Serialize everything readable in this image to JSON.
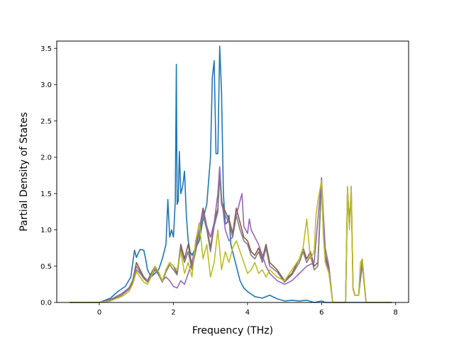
{
  "chart_data": {
    "type": "line",
    "title": "",
    "xlabel": "Frequency (THz)",
    "ylabel": "Partial Density of States",
    "xlim": [
      -1.15,
      8.35
    ],
    "ylim": [
      0,
      3.6
    ],
    "xticks": [
      0,
      2,
      4,
      6,
      8
    ],
    "yticks": [
      0.0,
      0.5,
      1.0,
      1.5,
      2.0,
      2.5,
      3.0,
      3.5
    ],
    "xtick_labels": [
      "0",
      "2",
      "4",
      "6",
      "8"
    ],
    "ytick_labels": [
      "0.0",
      "0.5",
      "1.0",
      "1.5",
      "2.0",
      "2.5",
      "3.0",
      "3.5"
    ],
    "grid": false,
    "legend": "none",
    "series": [
      {
        "color": "#1f77b4",
        "x": [
          -0.8,
          0.0,
          0.3,
          0.5,
          0.7,
          0.85,
          0.95,
          1.0,
          1.05,
          1.1,
          1.2,
          1.25,
          1.3,
          1.4,
          1.5,
          1.6,
          1.7,
          1.8,
          1.85,
          1.9,
          1.95,
          2.0,
          2.05,
          2.08,
          2.1,
          2.13,
          2.16,
          2.2,
          2.25,
          2.3,
          2.35,
          2.4,
          2.45,
          2.5,
          2.6,
          2.7,
          2.8,
          2.9,
          3.0,
          3.05,
          3.1,
          3.15,
          3.2,
          3.25,
          3.3,
          3.35,
          3.4,
          3.45,
          3.5,
          3.55,
          3.6,
          3.7,
          3.8,
          3.9,
          4.0,
          4.2,
          4.4,
          4.6,
          4.8,
          5.0,
          5.2,
          5.4,
          5.6,
          5.8,
          6.0,
          6.1,
          6.2,
          7.0,
          7.9
        ],
        "y": [
          0.0,
          0.0,
          0.06,
          0.15,
          0.22,
          0.35,
          0.72,
          0.62,
          0.68,
          0.73,
          0.72,
          0.6,
          0.45,
          0.35,
          0.4,
          0.45,
          0.6,
          0.8,
          1.42,
          0.9,
          1.0,
          0.9,
          1.4,
          3.28,
          1.35,
          1.4,
          2.08,
          1.5,
          1.6,
          1.81,
          1.2,
          0.85,
          0.7,
          0.65,
          0.75,
          0.85,
          1.15,
          1.35,
          2.0,
          3.1,
          3.33,
          2.05,
          2.05,
          3.53,
          2.9,
          1.5,
          1.08,
          1.1,
          1.2,
          0.8,
          0.7,
          0.5,
          0.3,
          0.2,
          0.15,
          0.08,
          0.06,
          0.1,
          0.05,
          0.02,
          0.03,
          0.02,
          0.03,
          0.0,
          0.02,
          0.0,
          0.0,
          0.0,
          0.0
        ]
      },
      {
        "color": "#8c564b",
        "x": [
          -0.8,
          0.0,
          0.3,
          0.6,
          0.8,
          0.9,
          1.0,
          1.1,
          1.2,
          1.3,
          1.4,
          1.5,
          1.6,
          1.7,
          1.8,
          1.9,
          2.0,
          2.1,
          2.2,
          2.3,
          2.4,
          2.5,
          2.6,
          2.7,
          2.8,
          2.9,
          3.0,
          3.1,
          3.2,
          3.25,
          3.3,
          3.4,
          3.5,
          3.6,
          3.7,
          3.8,
          3.9,
          4.0,
          4.1,
          4.2,
          4.3,
          4.4,
          4.5,
          4.6,
          4.8,
          5.0,
          5.2,
          5.4,
          5.5,
          5.6,
          5.7,
          5.8,
          5.9,
          6.0,
          6.05,
          6.1,
          6.2,
          6.3,
          6.6,
          6.65,
          6.7,
          6.75,
          6.8,
          6.85,
          6.9,
          7.0,
          7.1,
          7.2,
          7.9
        ],
        "y": [
          0.0,
          0.0,
          0.04,
          0.12,
          0.2,
          0.3,
          0.55,
          0.45,
          0.35,
          0.3,
          0.4,
          0.5,
          0.4,
          0.3,
          0.45,
          0.55,
          0.5,
          0.4,
          0.8,
          0.6,
          0.8,
          0.5,
          0.75,
          1.0,
          1.3,
          1.05,
          0.75,
          1.1,
          1.3,
          1.85,
          1.4,
          1.25,
          1.15,
          0.95,
          1.3,
          1.1,
          0.9,
          0.85,
          0.7,
          0.65,
          0.75,
          0.6,
          0.8,
          0.55,
          0.45,
          0.3,
          0.4,
          0.6,
          0.75,
          0.6,
          0.7,
          0.5,
          0.55,
          1.7,
          1.0,
          0.65,
          0.45,
          0.0,
          0.0,
          0.0,
          1.55,
          1.1,
          1.55,
          0.2,
          0.1,
          0.1,
          0.55,
          0.0,
          0.0
        ]
      },
      {
        "color": "#9467bd",
        "x": [
          -0.8,
          0.0,
          0.3,
          0.6,
          0.8,
          0.9,
          1.0,
          1.1,
          1.2,
          1.3,
          1.4,
          1.5,
          1.6,
          1.7,
          1.8,
          1.9,
          2.0,
          2.1,
          2.2,
          2.3,
          2.4,
          2.5,
          2.6,
          2.7,
          2.8,
          2.9,
          3.0,
          3.1,
          3.2,
          3.25,
          3.3,
          3.4,
          3.5,
          3.6,
          3.7,
          3.8,
          3.85,
          3.9,
          4.0,
          4.05,
          4.1,
          4.2,
          4.3,
          4.4,
          4.5,
          4.6,
          4.7,
          4.8,
          5.0,
          5.2,
          5.4,
          5.6,
          5.8,
          6.0,
          6.05,
          6.1,
          6.2,
          6.3,
          6.6,
          6.65,
          6.7,
          6.75,
          6.8,
          6.85,
          6.9,
          7.0,
          7.1,
          7.2,
          7.9
        ],
        "y": [
          0.0,
          0.0,
          0.04,
          0.12,
          0.2,
          0.28,
          0.45,
          0.4,
          0.33,
          0.3,
          0.35,
          0.45,
          0.38,
          0.3,
          0.35,
          0.3,
          0.22,
          0.2,
          0.3,
          0.25,
          0.4,
          0.55,
          0.8,
          1.0,
          1.25,
          1.05,
          0.9,
          1.1,
          1.5,
          1.87,
          1.45,
          1.0,
          0.85,
          0.9,
          1.2,
          1.4,
          1.5,
          1.05,
          0.95,
          1.15,
          1.0,
          0.9,
          0.8,
          0.65,
          0.5,
          0.4,
          0.35,
          0.3,
          0.25,
          0.3,
          0.4,
          0.5,
          0.55,
          1.72,
          1.2,
          0.75,
          0.5,
          0.0,
          0.0,
          0.0,
          1.58,
          1.05,
          1.6,
          0.2,
          0.1,
          0.1,
          0.6,
          0.0,
          0.0
        ]
      },
      {
        "color": "#7f7f7f",
        "x": [
          -0.8,
          0.0,
          0.3,
          0.6,
          0.8,
          0.9,
          1.0,
          1.1,
          1.2,
          1.3,
          1.4,
          1.5,
          1.6,
          1.7,
          1.8,
          1.9,
          2.0,
          2.1,
          2.2,
          2.3,
          2.4,
          2.5,
          2.6,
          2.7,
          2.8,
          2.9,
          3.0,
          3.1,
          3.2,
          3.25,
          3.3,
          3.4,
          3.5,
          3.6,
          3.7,
          3.8,
          3.9,
          4.0,
          4.1,
          4.2,
          4.3,
          4.4,
          4.5,
          4.6,
          4.8,
          5.0,
          5.2,
          5.4,
          5.5,
          5.6,
          5.7,
          5.8,
          5.9,
          6.0,
          6.05,
          6.1,
          6.2,
          6.3,
          6.6,
          6.65,
          6.7,
          6.75,
          6.8,
          6.85,
          6.9,
          7.0,
          7.1,
          7.2,
          7.9
        ],
        "y": [
          0.0,
          0.0,
          0.03,
          0.1,
          0.18,
          0.28,
          0.5,
          0.42,
          0.33,
          0.28,
          0.38,
          0.48,
          0.38,
          0.28,
          0.42,
          0.52,
          0.45,
          0.38,
          0.75,
          0.55,
          0.7,
          0.45,
          0.7,
          0.95,
          1.2,
          1.0,
          0.7,
          1.05,
          1.25,
          1.75,
          1.35,
          1.2,
          1.1,
          0.9,
          1.2,
          1.0,
          0.85,
          0.8,
          0.65,
          0.6,
          0.7,
          0.55,
          0.75,
          0.5,
          0.42,
          0.28,
          0.38,
          0.55,
          0.7,
          0.55,
          0.65,
          0.45,
          0.5,
          1.65,
          0.95,
          0.6,
          0.42,
          0.0,
          0.0,
          0.0,
          1.5,
          1.05,
          1.5,
          0.18,
          0.1,
          0.1,
          0.52,
          0.0,
          0.0
        ]
      },
      {
        "color": "#bcbd22",
        "x": [
          -0.8,
          0.0,
          0.3,
          0.6,
          0.8,
          0.9,
          1.0,
          1.1,
          1.2,
          1.3,
          1.4,
          1.5,
          1.6,
          1.7,
          1.8,
          1.9,
          2.0,
          2.1,
          2.2,
          2.3,
          2.4,
          2.5,
          2.6,
          2.7,
          2.8,
          2.9,
          3.0,
          3.1,
          3.2,
          3.3,
          3.4,
          3.5,
          3.6,
          3.7,
          3.8,
          3.9,
          4.0,
          4.1,
          4.2,
          4.3,
          4.4,
          4.5,
          4.6,
          4.8,
          5.0,
          5.2,
          5.4,
          5.5,
          5.6,
          5.7,
          5.8,
          5.85,
          5.9,
          6.0,
          6.05,
          6.1,
          6.2,
          6.3,
          6.6,
          6.65,
          6.7,
          6.75,
          6.8,
          6.85,
          6.9,
          7.0,
          7.05,
          7.1,
          7.2,
          7.9
        ],
        "y": [
          0.0,
          0.0,
          0.02,
          0.08,
          0.15,
          0.25,
          0.42,
          0.35,
          0.28,
          0.25,
          0.35,
          0.5,
          0.42,
          0.3,
          0.45,
          0.55,
          0.5,
          0.45,
          0.7,
          0.4,
          0.55,
          0.35,
          0.85,
          1.1,
          0.6,
          0.8,
          0.35,
          0.55,
          1.0,
          0.45,
          0.7,
          0.55,
          0.75,
          0.85,
          0.7,
          0.55,
          0.4,
          0.45,
          0.55,
          0.4,
          0.45,
          0.35,
          0.45,
          0.35,
          0.3,
          0.45,
          0.6,
          0.75,
          1.15,
          0.6,
          0.7,
          1.2,
          1.4,
          1.68,
          0.9,
          0.55,
          0.4,
          0.0,
          0.0,
          0.0,
          1.6,
          1.0,
          1.6,
          0.2,
          0.1,
          0.1,
          0.55,
          0.6,
          0.0,
          0.0
        ]
      }
    ]
  }
}
